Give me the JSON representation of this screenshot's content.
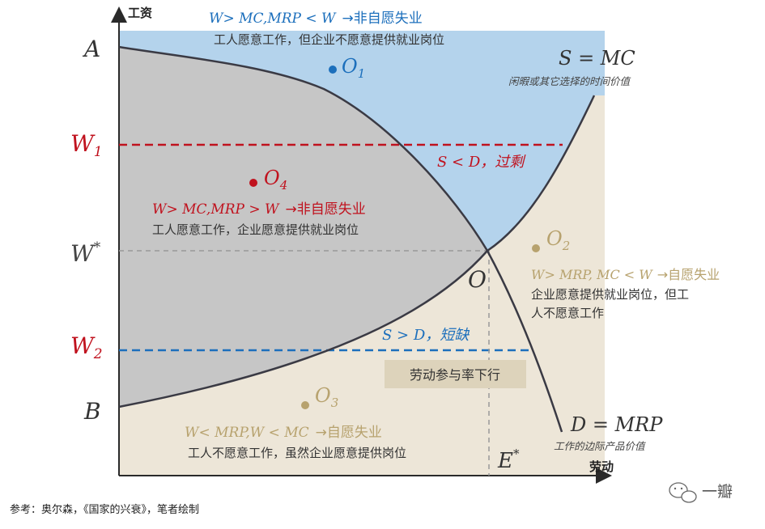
{
  "axes": {
    "y_label": "工资",
    "x_label": "劳动",
    "tick_labels": {
      "A": "A",
      "W1": "W",
      "W1_sub": "1",
      "Wstar": "W",
      "Wstar_sup": "*",
      "W2": "W",
      "W2_sub": "2",
      "B": "B",
      "Estar": "E",
      "Estar_sup": "*",
      "O": "O"
    }
  },
  "curves": {
    "supply_label": "S = MC",
    "supply_note": "闲暇或其它选择的时间价值",
    "demand_label": "D = MRP",
    "demand_note": "工作的边际产品价值"
  },
  "regions": {
    "top": {
      "point": "O",
      "point_sub": "1",
      "condition": "W> MC,MRP < W",
      "result": "→非自愿失业",
      "desc": "工人愿意工作，但企业不愿意提供就业岗位"
    },
    "left": {
      "point": "O",
      "point_sub": "4",
      "condition": "W> MC,MRP > W",
      "result": "→非自愿失业",
      "desc": "工人愿意工作，企业愿意提供就业岗位"
    },
    "right": {
      "point": "O",
      "point_sub": "2",
      "condition": "W> MRP, MC < W",
      "result": "→自愿失业",
      "desc_line1": "企业愿意提供就业岗位，但工",
      "desc_line2": "人不愿意工作"
    },
    "bottom": {
      "point": "O",
      "point_sub": "3",
      "condition": "W< MRP,W < MC",
      "result": "→自愿失业",
      "desc": "工人不愿意工作，虽然企业愿意提供岗位"
    }
  },
  "annotations": {
    "surplus": "S < D，过剩",
    "shortage": "S > D，短缺",
    "participation": "劳动参与率下行"
  },
  "footer": {
    "source": "参考：奥尔森，《国家的兴衰》，笔者绘制",
    "watermark": "一瓣"
  },
  "colors": {
    "blue_region": "#b4d3ec",
    "gray_region": "#c6c6c6",
    "beige_region": "#ede6d8",
    "curve": "#3a3a44",
    "red": "#c0121e",
    "blue": "#1c6fbc",
    "tan": "#b7a26e",
    "participation_box": "#ddd3bb"
  }
}
